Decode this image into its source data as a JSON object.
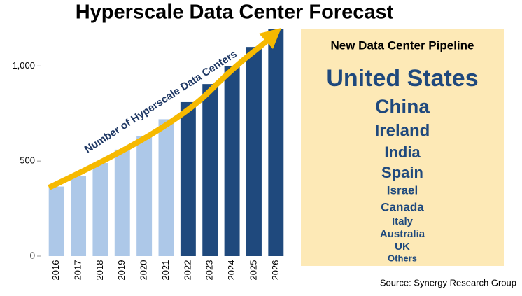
{
  "chart_data": {
    "type": "bar",
    "title": "Hyperscale Data Center Forecast",
    "categories": [
      "2016",
      "2017",
      "2018",
      "2019",
      "2020",
      "2021",
      "2022",
      "2023",
      "2024",
      "2025",
      "2026"
    ],
    "values": [
      366,
      420,
      490,
      560,
      630,
      720,
      810,
      905,
      1000,
      1100,
      1195
    ],
    "colors": [
      "#adc8e8",
      "#adc8e8",
      "#adc8e8",
      "#adc8e8",
      "#adc8e8",
      "#adc8e8",
      "#1f497d",
      "#1f497d",
      "#1f497d",
      "#1f497d",
      "#1f497d"
    ],
    "ylim": [
      0,
      1200
    ],
    "yticks": [
      0,
      500,
      {
        "value": 1000,
        "label": "1,000"
      }
    ],
    "grid": false,
    "annotation": "Number of Hyperscale Data Centers",
    "panel": {
      "title": "New Data Center Pipeline",
      "items": [
        "United States",
        "China",
        "Ireland",
        "India",
        "Spain",
        "Israel",
        "Canada",
        "Italy",
        "Australia",
        "UK",
        "Others"
      ]
    },
    "source": "Source: Synergy Research Group"
  }
}
